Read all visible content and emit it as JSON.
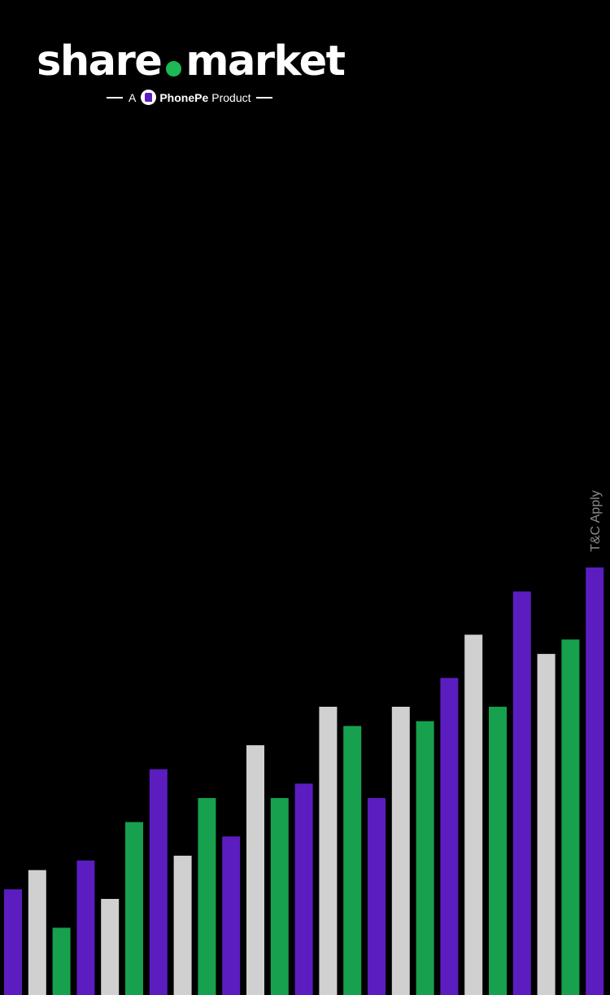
{
  "brand": {
    "word_left": "share",
    "word_right": "market",
    "dot_color": "#1db954",
    "tagline_prefix": "A",
    "tagline_brand": "PhonePe",
    "tagline_suffix": "Product",
    "tagline_icon": "phonepe-logo-icon"
  },
  "footer": {
    "tnc": "T&C Apply"
  },
  "colors": {
    "background": "#000000",
    "purple": "#5b1dbf",
    "white": "#d0d0d0",
    "green": "#17a04e"
  },
  "decorative_bars": {
    "color_cycle": [
      "purple",
      "white",
      "green"
    ],
    "levels": [
      0.22,
      0.26,
      0.14,
      0.28,
      0.2,
      0.36,
      0.47,
      0.29,
      0.41,
      0.33,
      0.52,
      0.41,
      0.44,
      0.6,
      0.56,
      0.41,
      0.6,
      0.57,
      0.66,
      0.75,
      0.6,
      0.84,
      0.71,
      0.74,
      0.89
    ]
  }
}
